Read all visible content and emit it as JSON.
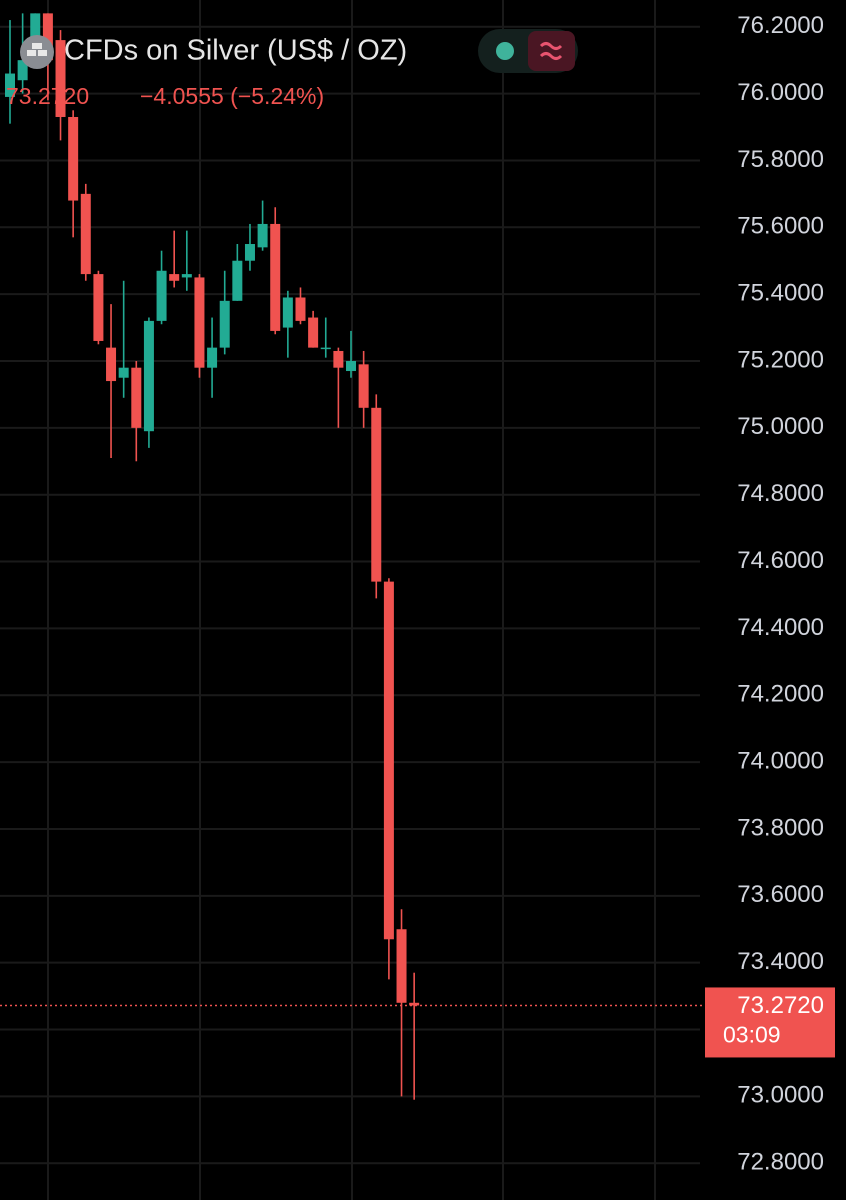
{
  "chart_data": {
    "type": "candlestick",
    "title": "CFDs on Silver (US$ / OZ)",
    "last_price_text": "73.2720",
    "change_text": "−4.0555 (−5.24%)",
    "price_line": {
      "value": 73.272,
      "label": "73.2720"
    },
    "countdown": "03:09",
    "up_color": "#22ab94",
    "down_color": "#f05350",
    "open": [
      75.99,
      76.04,
      76.1,
      76.24,
      76.16,
      75.93,
      75.7,
      75.46,
      75.24,
      75.15,
      75.18,
      74.99,
      75.32,
      75.46,
      75.45,
      75.45,
      75.18,
      75.24,
      75.38,
      75.5,
      75.54,
      75.61,
      75.3,
      75.39,
      75.33,
      75.24,
      75.23,
      75.17,
      75.19,
      75.06,
      74.54,
      73.5,
      73.28
    ],
    "high": [
      76.22,
      76.24,
      76.24,
      76.24,
      76.19,
      75.95,
      75.73,
      75.47,
      75.37,
      75.44,
      75.2,
      75.33,
      75.53,
      75.59,
      75.59,
      75.46,
      75.33,
      75.47,
      75.55,
      75.61,
      75.68,
      75.66,
      75.41,
      75.42,
      75.35,
      75.33,
      75.24,
      75.29,
      75.23,
      75.1,
      74.55,
      73.56,
      73.37
    ],
    "low": [
      75.91,
      76.0,
      76.09,
      75.98,
      75.86,
      75.57,
      75.44,
      75.25,
      74.91,
      75.09,
      74.9,
      74.94,
      75.31,
      75.42,
      75.41,
      75.15,
      75.09,
      75.22,
      75.38,
      75.47,
      75.53,
      75.28,
      75.21,
      75.31,
      75.24,
      75.21,
      75.0,
      75.15,
      75.0,
      74.49,
      73.35,
      73.0,
      72.99
    ],
    "close": [
      76.06,
      76.1,
      76.24,
      76.1,
      75.93,
      75.68,
      75.46,
      75.26,
      75.14,
      75.18,
      75.0,
      75.32,
      75.47,
      75.44,
      75.46,
      75.18,
      75.24,
      75.38,
      75.5,
      75.55,
      75.61,
      75.29,
      75.39,
      75.32,
      75.24,
      75.24,
      75.18,
      75.2,
      75.06,
      74.54,
      73.47,
      73.28,
      73.272
    ],
    "ylim": [
      72.69,
      76.28
    ],
    "yticks": [
      {
        "value": 72.8,
        "label": "72.8000"
      },
      {
        "value": 73.0,
        "label": "73.0000"
      },
      {
        "value": 73.2,
        "label": "73.2000"
      },
      {
        "value": 73.4,
        "label": "73.4000"
      },
      {
        "value": 73.6,
        "label": "73.6000"
      },
      {
        "value": 73.8,
        "label": "73.8000"
      },
      {
        "value": 74.0,
        "label": "74.0000"
      },
      {
        "value": 74.2,
        "label": "74.2000"
      },
      {
        "value": 74.4,
        "label": "74.4000"
      },
      {
        "value": 74.6,
        "label": "74.6000"
      },
      {
        "value": 74.8,
        "label": "74.8000"
      },
      {
        "value": 75.0,
        "label": "75.0000"
      },
      {
        "value": 75.2,
        "label": "75.2000"
      },
      {
        "value": 75.4,
        "label": "75.4000"
      },
      {
        "value": 75.6,
        "label": "75.6000"
      },
      {
        "value": 75.8,
        "label": "75.8000"
      },
      {
        "value": 76.0,
        "label": "76.0000"
      },
      {
        "value": 76.2,
        "label": "76.2000"
      }
    ],
    "grid": true
  }
}
